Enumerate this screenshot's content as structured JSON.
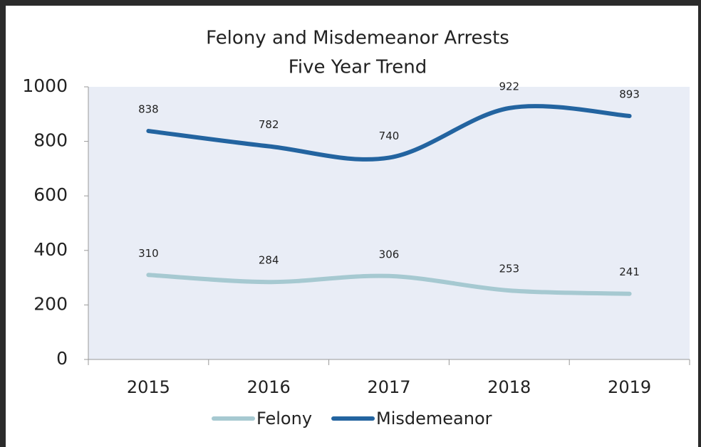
{
  "chart_data": {
    "type": "line",
    "title": "Felony and Misdemeanor Arrests",
    "subtitle": "Five Year Trend",
    "categories": [
      "2015",
      "2016",
      "2017",
      "2018",
      "2019"
    ],
    "series": [
      {
        "name": "Felony",
        "color": "#a6c9d1",
        "values": [
          310,
          284,
          306,
          253,
          241
        ]
      },
      {
        "name": "Misdemeanor",
        "color": "#2364a0",
        "values": [
          838,
          782,
          740,
          922,
          893
        ]
      }
    ],
    "ylim": [
      0,
      1000
    ],
    "yticks": [
      0,
      200,
      400,
      600,
      800,
      1000
    ],
    "smooth": true,
    "legend": "bottom"
  }
}
